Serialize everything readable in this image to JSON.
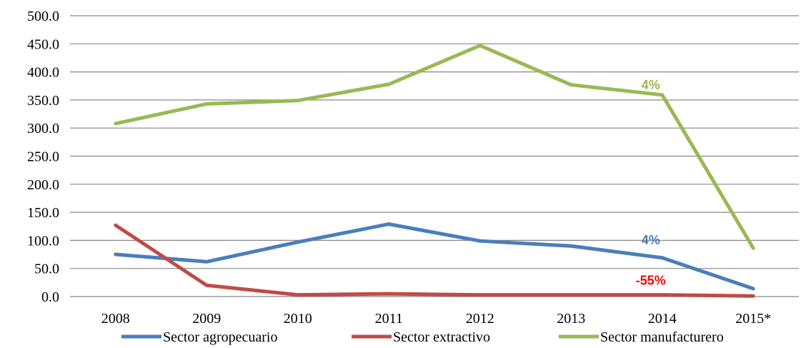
{
  "chart_data": {
    "type": "line",
    "categories": [
      "2008",
      "2009",
      "2010",
      "2011",
      "2012",
      "2013",
      "2014",
      "2015*"
    ],
    "series": [
      {
        "name": "Sector agropecuario",
        "color": "#4a7ebb",
        "values": [
          75,
          62,
          97,
          129,
          99,
          90,
          69,
          14
        ]
      },
      {
        "name": "Sector extractivo",
        "color": "#be4b48",
        "values": [
          127,
          20,
          3,
          5,
          3,
          3,
          3,
          1
        ]
      },
      {
        "name": "Sector manufacturero",
        "color": "#98b954",
        "values": [
          308,
          343,
          349,
          378,
          447,
          377,
          359,
          86
        ]
      }
    ],
    "ylim": [
      0,
      500
    ],
    "yticks": [
      "0.0",
      "50.0",
      "100.0",
      "150.0",
      "200.0",
      "250.0",
      "300.0",
      "350.0",
      "400.0",
      "450.0",
      "500.0"
    ],
    "grid": true,
    "legend": "bottom",
    "annotations": [
      {
        "text": "4%",
        "series": 2,
        "index": 6,
        "color": "#98b954"
      },
      {
        "text": "4%",
        "series": 0,
        "index": 6,
        "color": "#4a7ebb"
      },
      {
        "text": "-55%",
        "series": 1,
        "index": 6,
        "color": "#ff0000"
      }
    ]
  }
}
